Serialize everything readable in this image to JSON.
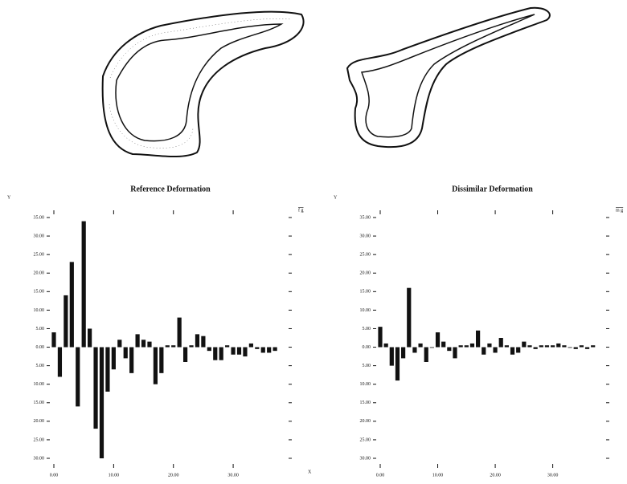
{
  "chart_data": [
    {
      "type": "bar",
      "title": "Reference Deformation",
      "ylabel": "Y",
      "xlabel": "X",
      "corner_label": "f g",
      "color": "#111111",
      "x": [
        0,
        1,
        2,
        3,
        4,
        5,
        6,
        7,
        8,
        9,
        10,
        11,
        12,
        13,
        14,
        15,
        16,
        17,
        18,
        19,
        20,
        21,
        22,
        23,
        24,
        25,
        26,
        27,
        28,
        29,
        30,
        31,
        32,
        33,
        34,
        35,
        36,
        37
      ],
      "values": [
        4,
        -8,
        14,
        23,
        -16,
        34,
        5,
        -22,
        -30,
        -12,
        -6,
        2,
        -3,
        -7,
        3.5,
        2,
        1.5,
        -10,
        -7,
        0.5,
        0.5,
        8,
        -4,
        0.5,
        3.5,
        3,
        -1,
        -3.5,
        -3.5,
        0.5,
        -2,
        -2,
        -2.5,
        1,
        -0.5,
        -1.5,
        -1.5,
        -1
      ],
      "xlim": [
        0,
        39
      ],
      "ylim": [
        -30,
        35
      ],
      "xticks": [
        {
          "value": 0,
          "label": "0.00"
        },
        {
          "value": 10,
          "label": "10.00"
        },
        {
          "value": 20,
          "label": "20.00"
        },
        {
          "value": 30,
          "label": "30.00"
        }
      ],
      "yticks": [
        {
          "value": 35,
          "label": "35.00"
        },
        {
          "value": 30,
          "label": "30.00"
        },
        {
          "value": 25,
          "label": "25.00"
        },
        {
          "value": 20,
          "label": "20.00"
        },
        {
          "value": 15,
          "label": "15.00"
        },
        {
          "value": 10,
          "label": "10.00"
        },
        {
          "value": 5,
          "label": "5.00"
        },
        {
          "value": 0,
          "label": "0.00"
        },
        {
          "value": -5,
          "label": "5.00"
        },
        {
          "value": -10,
          "label": "10.00"
        },
        {
          "value": -15,
          "label": "15.00"
        },
        {
          "value": -20,
          "label": "20.00"
        },
        {
          "value": -25,
          "label": "25.00"
        },
        {
          "value": -30,
          "label": "30.00"
        }
      ]
    },
    {
      "type": "bar",
      "title": "Dissimilar Deformation",
      "ylabel": "Y",
      "corner_label": "m g",
      "color": "#111111",
      "x": [
        0,
        1,
        2,
        3,
        4,
        5,
        6,
        7,
        8,
        9,
        10,
        11,
        12,
        13,
        14,
        15,
        16,
        17,
        18,
        19,
        20,
        21,
        22,
        23,
        24,
        25,
        26,
        27,
        28,
        29,
        30,
        31,
        32,
        33,
        34,
        35,
        36,
        37
      ],
      "values": [
        5.5,
        1,
        -5,
        -9,
        -3,
        16,
        -1.5,
        1,
        -4,
        0,
        4,
        1.5,
        -1,
        -3,
        0.5,
        0.5,
        1,
        4.5,
        -2,
        1,
        -1.5,
        2.5,
        0.5,
        -2,
        -1.5,
        1.5,
        0.5,
        -0.5,
        0.5,
        0.5,
        0.5,
        1,
        0.5,
        0,
        -0.5,
        0.5,
        -0.5,
        0.5
      ],
      "xlim": [
        0,
        39
      ],
      "ylim": [
        -30,
        35
      ],
      "xticks": [
        {
          "value": 0,
          "label": "0.00"
        },
        {
          "value": 10,
          "label": "10.00"
        },
        {
          "value": 20,
          "label": "20.00"
        },
        {
          "value": 30,
          "label": "30.00"
        }
      ],
      "yticks": [
        {
          "value": 35,
          "label": "35.00"
        },
        {
          "value": 30,
          "label": "30.00"
        },
        {
          "value": 25,
          "label": "25.00"
        },
        {
          "value": 20,
          "label": "20.00"
        },
        {
          "value": 15,
          "label": "15.00"
        },
        {
          "value": 10,
          "label": "10.00"
        },
        {
          "value": 5,
          "label": "5.00"
        },
        {
          "value": 0,
          "label": "0.00"
        },
        {
          "value": -5,
          "label": "5.00"
        },
        {
          "value": -10,
          "label": "10.00"
        },
        {
          "value": -15,
          "label": "15.00"
        },
        {
          "value": -20,
          "label": "20.00"
        },
        {
          "value": -25,
          "label": "25.00"
        },
        {
          "value": -30,
          "label": "30.00"
        }
      ]
    }
  ]
}
